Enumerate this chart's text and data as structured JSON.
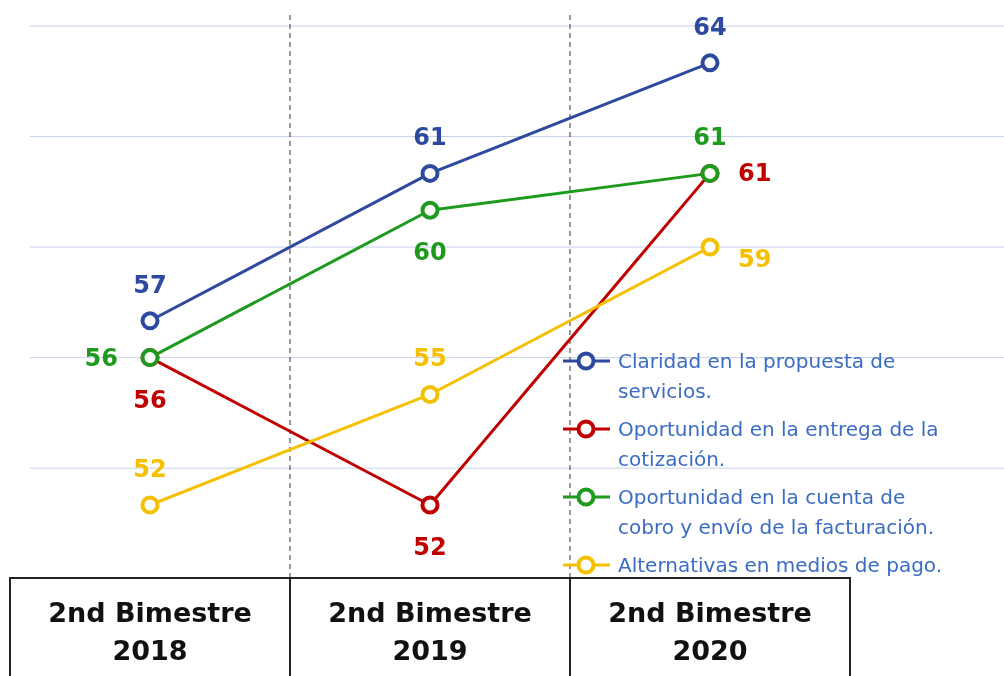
{
  "chart_data": {
    "type": "line",
    "categories": [
      "2nd Bimestre 2018",
      "2nd Bimestre 2019",
      "2nd Bimestre 2020"
    ],
    "series": [
      {
        "name": "Claridad en la propuesta de servicios.",
        "color": "#2e4a9e",
        "values": [
          57,
          61,
          64
        ]
      },
      {
        "name": "Oportunidad en la entrega de la cotización.",
        "color": "#c00000",
        "values": [
          56,
          52,
          61
        ]
      },
      {
        "name": "Oportunidad en la cuenta de cobro y envío de la facturación.",
        "color": "#1e9a1e",
        "values": [
          56,
          60,
          61
        ]
      },
      {
        "name": "Alternativas en medios de pago.",
        "color": "#f5c000",
        "values": [
          52,
          55,
          59
        ]
      }
    ],
    "yticks": [
      {
        "value": 53,
        "label": null
      },
      {
        "value": 56,
        "label": null
      },
      {
        "value": 59,
        "label": null
      },
      {
        "value": 62,
        "label": null
      },
      {
        "value": 65,
        "label": null
      }
    ],
    "grid": "y",
    "legend": "bottom right",
    "marker": "circle",
    "line_style": "solid",
    "data_labels": true,
    "relative": false
  }
}
